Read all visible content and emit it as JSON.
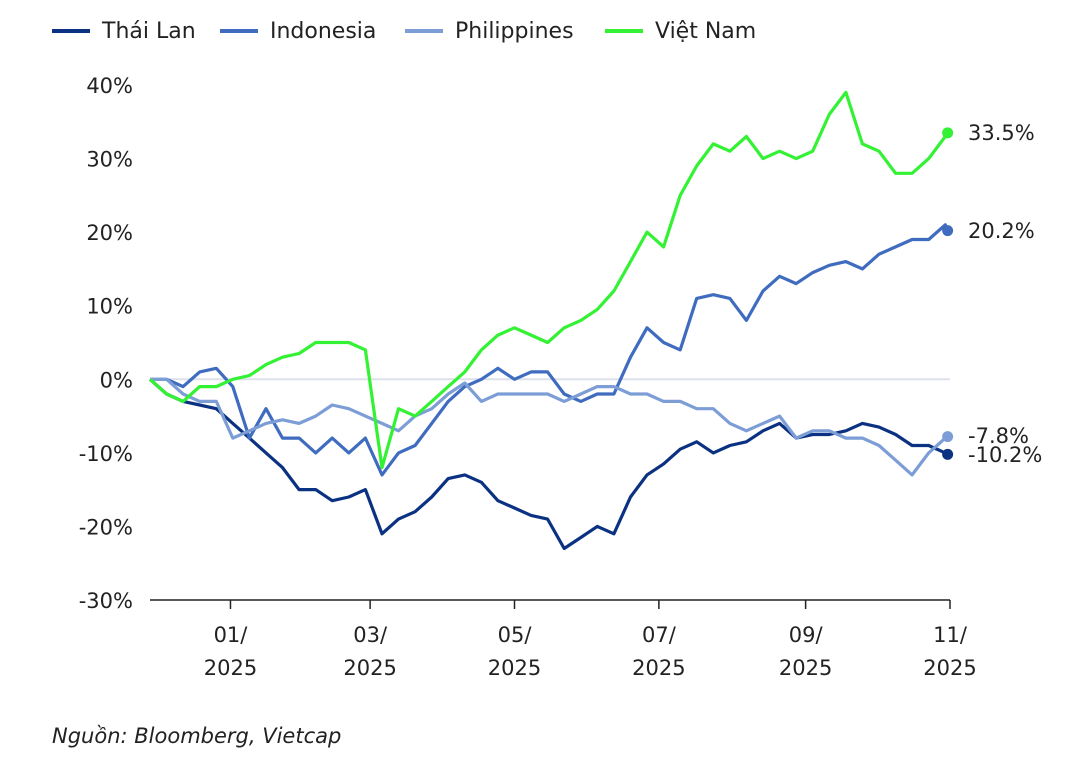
{
  "chart_data": {
    "type": "line",
    "title": "",
    "xlabel": "",
    "ylabel": "",
    "ylim": [
      -30,
      40
    ],
    "y_ticks": [
      40,
      30,
      20,
      10,
      0,
      -10,
      -20,
      -30
    ],
    "y_tick_labels": [
      "40%",
      "30%",
      "20%",
      "10%",
      "0%",
      "-10%",
      "-20%",
      "-30%"
    ],
    "x_ticks": [
      {
        "date": "2025-01-01",
        "line1": "01/",
        "line2": "2025"
      },
      {
        "date": "2025-03-01",
        "line1": "03/",
        "line2": "2025"
      },
      {
        "date": "2025-05-01",
        "line1": "05/",
        "line2": "2025"
      },
      {
        "date": "2025-07-01",
        "line1": "07/",
        "line2": "2025"
      },
      {
        "date": "2025-09-01",
        "line1": "09/",
        "line2": "2025"
      },
      {
        "date": "2025-11-01",
        "line1": "11/",
        "line2": "2025"
      }
    ],
    "grid": false,
    "zero_line": true,
    "legend_position": "top",
    "x": [
      "2024-11-28",
      "2024-12-05",
      "2024-12-12",
      "2024-12-19",
      "2024-12-26",
      "2025-01-02",
      "2025-01-09",
      "2025-01-16",
      "2025-01-23",
      "2025-01-30",
      "2025-02-06",
      "2025-02-13",
      "2025-02-20",
      "2025-02-27",
      "2025-03-06",
      "2025-03-13",
      "2025-03-20",
      "2025-03-27",
      "2025-04-03",
      "2025-04-10",
      "2025-04-17",
      "2025-04-24",
      "2025-05-01",
      "2025-05-08",
      "2025-05-15",
      "2025-05-22",
      "2025-05-29",
      "2025-06-05",
      "2025-06-12",
      "2025-06-19",
      "2025-06-26",
      "2025-07-03",
      "2025-07-10",
      "2025-07-17",
      "2025-07-24",
      "2025-07-31",
      "2025-08-07",
      "2025-08-14",
      "2025-08-21",
      "2025-08-28",
      "2025-09-04",
      "2025-09-11",
      "2025-09-18",
      "2025-09-25",
      "2025-10-02",
      "2025-10-09",
      "2025-10-16",
      "2025-10-23",
      "2025-10-30",
      "2025-10-31"
    ],
    "series": [
      {
        "name": "Thái Lan",
        "color": "#0b3282",
        "end_label": "-10.2%",
        "values": [
          0,
          -2,
          -3,
          -3.5,
          -4,
          -6,
          -8,
          -10,
          -12,
          -15,
          -15,
          -16.5,
          -16,
          -15,
          -21,
          -19,
          -18,
          -16,
          -13.5,
          -13,
          -14,
          -16.5,
          -17.5,
          -18.5,
          -19,
          -23,
          -21.5,
          -20,
          -21,
          -16,
          -13,
          -11.5,
          -9.5,
          -8.5,
          -10,
          -9,
          -8.5,
          -7,
          -6,
          -8,
          -7.5,
          -7.5,
          -7,
          -6,
          -6.5,
          -7.5,
          -9,
          -9,
          -10,
          -10.2
        ]
      },
      {
        "name": "Indonesia",
        "color": "#3f6cbf",
        "end_label": "20.2%",
        "values": [
          0,
          0,
          -1,
          1,
          1.5,
          -1,
          -8,
          -4,
          -8,
          -8,
          -10,
          -8,
          -10,
          -8,
          -13,
          -10,
          -9,
          -6,
          -3,
          -1,
          0,
          1.5,
          0,
          1,
          1,
          -2,
          -3,
          -2,
          -2,
          3,
          7,
          5,
          4,
          11,
          11.5,
          11,
          8,
          12,
          14,
          13,
          14.5,
          15.5,
          16,
          15,
          17,
          18,
          19,
          19,
          21,
          20.2
        ]
      },
      {
        "name": "Philippines",
        "color": "#7d9dd6",
        "end_label": "-7.8%",
        "values": [
          0,
          0,
          -2,
          -3,
          -3,
          -8,
          -7,
          -6,
          -5.5,
          -6,
          -5,
          -3.5,
          -4,
          -5,
          -6,
          -7,
          -5,
          -4,
          -2,
          -0.5,
          -3,
          -2,
          -2,
          -2,
          -2,
          -3,
          -2,
          -1,
          -1,
          -2,
          -2,
          -3,
          -3,
          -4,
          -4,
          -6,
          -7,
          -6,
          -5,
          -8,
          -7,
          -7,
          -8,
          -8,
          -9,
          -11,
          -13,
          -10,
          -8,
          -7.8
        ]
      },
      {
        "name": "Việt Nam",
        "color": "#33f233",
        "end_label": "33.5%",
        "values": [
          0,
          -2,
          -3,
          -1,
          -1,
          0,
          0.5,
          2,
          3,
          3.5,
          5,
          5,
          5,
          4,
          -12,
          -4,
          -5,
          -3,
          -1,
          1,
          4,
          6,
          7,
          6,
          5,
          7,
          8,
          9.5,
          12,
          16,
          20,
          18,
          25,
          29,
          32,
          31,
          33,
          30,
          31,
          30,
          31,
          36,
          39,
          32,
          31,
          28,
          28,
          30,
          33,
          33.5
        ]
      }
    ]
  },
  "source": "Nguồn: Bloomberg, Vietcap"
}
